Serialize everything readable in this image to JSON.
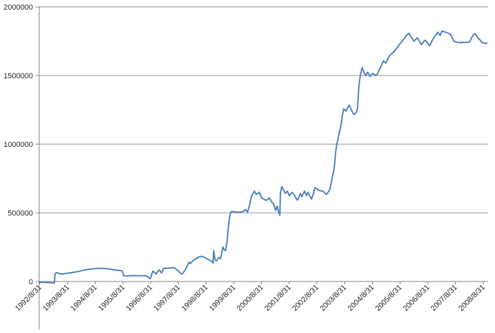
{
  "chart_data": {
    "type": "line",
    "title": "",
    "xlabel": "",
    "ylabel": "",
    "legend": "none",
    "grid": true,
    "ylim": [
      0,
      2000000
    ],
    "xlim": [
      1992.667,
      2008.83
    ],
    "y_ticks": [
      {
        "value": 0,
        "label": "0"
      },
      {
        "value": 500000,
        "label": "500000"
      },
      {
        "value": 1000000,
        "label": "1000000"
      },
      {
        "value": 1500000,
        "label": "1500000"
      },
      {
        "value": 2000000,
        "label": "2000000"
      }
    ],
    "x_tick_labels": [
      "1992/8/31",
      "1993/8/31",
      "1994/8/31",
      "1995/8/31",
      "1996/8/31",
      "1997/8/31",
      "1998/8/31",
      "1999/8/31",
      "2000/8/31",
      "2001/8/31",
      "2002/8/31",
      "2003/8/31",
      "2004/8/31",
      "2005/8/31",
      "2006/8/31",
      "2007/8/31",
      "2008/8/31"
    ],
    "x_tick_values": [
      1992.667,
      1993.667,
      1994.667,
      1995.667,
      1996.667,
      1997.667,
      1998.667,
      1999.667,
      2000.667,
      2001.667,
      2002.667,
      2003.667,
      2004.667,
      2005.667,
      2006.667,
      2007.667,
      2008.667
    ],
    "series": [
      {
        "name": "value-series",
        "color": "#4F81BD",
        "points": [
          [
            1992.64,
            -5000
          ],
          [
            1992.72,
            -5000
          ],
          [
            1992.82,
            -6000
          ],
          [
            1992.89,
            -7000
          ],
          [
            1992.96,
            -8000
          ],
          [
            1993.06,
            -9000
          ],
          [
            1993.14,
            -11000
          ],
          [
            1993.19,
            -10000
          ],
          [
            1993.21,
            52000
          ],
          [
            1993.26,
            66000
          ],
          [
            1993.34,
            60000
          ],
          [
            1993.41,
            56000
          ],
          [
            1993.49,
            55000
          ],
          [
            1993.58,
            58000
          ],
          [
            1993.66,
            60000
          ],
          [
            1993.73,
            62000
          ],
          [
            1993.83,
            65000
          ],
          [
            1993.91,
            68000
          ],
          [
            1993.98,
            70000
          ],
          [
            1994.08,
            74000
          ],
          [
            1994.16,
            78000
          ],
          [
            1994.23,
            82000
          ],
          [
            1994.33,
            85000
          ],
          [
            1994.4,
            88000
          ],
          [
            1994.48,
            90000
          ],
          [
            1994.58,
            92000
          ],
          [
            1994.65,
            94000
          ],
          [
            1994.73,
            95000
          ],
          [
            1994.83,
            96000
          ],
          [
            1994.9,
            96000
          ],
          [
            1994.97,
            95000
          ],
          [
            1995.07,
            93000
          ],
          [
            1995.15,
            91000
          ],
          [
            1995.22,
            89000
          ],
          [
            1995.32,
            86000
          ],
          [
            1995.4,
            84000
          ],
          [
            1995.47,
            82000
          ],
          [
            1995.57,
            80000
          ],
          [
            1995.64,
            76000
          ],
          [
            1995.69,
            42000
          ],
          [
            1995.77,
            42000
          ],
          [
            1995.84,
            41000
          ],
          [
            1995.94,
            42000
          ],
          [
            1996.02,
            42000
          ],
          [
            1996.09,
            43000
          ],
          [
            1996.19,
            42000
          ],
          [
            1996.26,
            42000
          ],
          [
            1996.34,
            42000
          ],
          [
            1996.44,
            42000
          ],
          [
            1996.51,
            41000
          ],
          [
            1996.59,
            30000
          ],
          [
            1996.64,
            20000
          ],
          [
            1996.69,
            40000
          ],
          [
            1996.74,
            75000
          ],
          [
            1996.81,
            65000
          ],
          [
            1996.86,
            55000
          ],
          [
            1996.93,
            75000
          ],
          [
            1996.98,
            84000
          ],
          [
            1997.06,
            62000
          ],
          [
            1997.13,
            95000
          ],
          [
            1997.21,
            96000
          ],
          [
            1997.28,
            97000
          ],
          [
            1997.38,
            99000
          ],
          [
            1997.46,
            101000
          ],
          [
            1997.53,
            98000
          ],
          [
            1997.6,
            88000
          ],
          [
            1997.68,
            75000
          ],
          [
            1997.75,
            57000
          ],
          [
            1997.8,
            54000
          ],
          [
            1997.88,
            75000
          ],
          [
            1997.93,
            91000
          ],
          [
            1997.98,
            110000
          ],
          [
            1998.05,
            141000
          ],
          [
            1998.1,
            130000
          ],
          [
            1998.18,
            150000
          ],
          [
            1998.23,
            158000
          ],
          [
            1998.3,
            165000
          ],
          [
            1998.37,
            175000
          ],
          [
            1998.45,
            180000
          ],
          [
            1998.5,
            184000
          ],
          [
            1998.57,
            180000
          ],
          [
            1998.65,
            172000
          ],
          [
            1998.72,
            163000
          ],
          [
            1998.82,
            153000
          ],
          [
            1998.9,
            140000
          ],
          [
            1998.92,
            134000
          ],
          [
            1998.94,
            225000
          ],
          [
            1998.99,
            160000
          ],
          [
            1999.04,
            150000
          ],
          [
            1999.12,
            175000
          ],
          [
            1999.19,
            167000
          ],
          [
            1999.27,
            250000
          ],
          [
            1999.32,
            230000
          ],
          [
            1999.37,
            225000
          ],
          [
            1999.42,
            283000
          ],
          [
            1999.47,
            400000
          ],
          [
            1999.52,
            480000
          ],
          [
            1999.57,
            508000
          ],
          [
            1999.64,
            510000
          ],
          [
            1999.71,
            507000
          ],
          [
            1999.79,
            506000
          ],
          [
            1999.86,
            505000
          ],
          [
            1999.94,
            507000
          ],
          [
            2000.01,
            510000
          ],
          [
            2000.09,
            525000
          ],
          [
            2000.16,
            505000
          ],
          [
            2000.24,
            560000
          ],
          [
            2000.31,
            625000
          ],
          [
            2000.41,
            658000
          ],
          [
            2000.48,
            634000
          ],
          [
            2000.58,
            650000
          ],
          [
            2000.68,
            609000
          ],
          [
            2000.78,
            595000
          ],
          [
            2000.86,
            592000
          ],
          [
            2000.95,
            608000
          ],
          [
            2001.03,
            580000
          ],
          [
            2001.1,
            567000
          ],
          [
            2001.18,
            517000
          ],
          [
            2001.23,
            550000
          ],
          [
            2001.28,
            510000
          ],
          [
            2001.33,
            484000
          ],
          [
            2001.35,
            650000
          ],
          [
            2001.4,
            691000
          ],
          [
            2001.48,
            660000
          ],
          [
            2001.53,
            642000
          ],
          [
            2001.6,
            658000
          ],
          [
            2001.67,
            625000
          ],
          [
            2001.77,
            650000
          ],
          [
            2001.85,
            630000
          ],
          [
            2001.9,
            610000
          ],
          [
            2001.97,
            592000
          ],
          [
            2002.07,
            641000
          ],
          [
            2002.12,
            617000
          ],
          [
            2002.22,
            658000
          ],
          [
            2002.29,
            625000
          ],
          [
            2002.34,
            650000
          ],
          [
            2002.42,
            620000
          ],
          [
            2002.47,
            600000
          ],
          [
            2002.54,
            640000
          ],
          [
            2002.59,
            683000
          ],
          [
            2002.72,
            667000
          ],
          [
            2002.79,
            660000
          ],
          [
            2002.89,
            658000
          ],
          [
            2002.94,
            645000
          ],
          [
            2003.01,
            634000
          ],
          [
            2003.09,
            655000
          ],
          [
            2003.14,
            675000
          ],
          [
            2003.21,
            750000
          ],
          [
            2003.26,
            790000
          ],
          [
            2003.31,
            860000
          ],
          [
            2003.34,
            940000
          ],
          [
            2003.39,
            1005000
          ],
          [
            2003.44,
            1050000
          ],
          [
            2003.49,
            1100000
          ],
          [
            2003.54,
            1140000
          ],
          [
            2003.58,
            1200000
          ],
          [
            2003.63,
            1258000
          ],
          [
            2003.71,
            1241000
          ],
          [
            2003.76,
            1260000
          ],
          [
            2003.83,
            1285000
          ],
          [
            2003.91,
            1250000
          ],
          [
            2003.96,
            1230000
          ],
          [
            2004.01,
            1215000
          ],
          [
            2004.08,
            1230000
          ],
          [
            2004.13,
            1260000
          ],
          [
            2004.18,
            1420000
          ],
          [
            2004.23,
            1500000
          ],
          [
            2004.3,
            1558000
          ],
          [
            2004.35,
            1530000
          ],
          [
            2004.43,
            1500000
          ],
          [
            2004.5,
            1525000
          ],
          [
            2004.58,
            1492000
          ],
          [
            2004.65,
            1510000
          ],
          [
            2004.7,
            1515000
          ],
          [
            2004.78,
            1500000
          ],
          [
            2004.83,
            1505000
          ],
          [
            2004.9,
            1535000
          ],
          [
            2005.0,
            1575000
          ],
          [
            2005.07,
            1608000
          ],
          [
            2005.15,
            1590000
          ],
          [
            2005.25,
            1633000
          ],
          [
            2005.32,
            1650000
          ],
          [
            2005.4,
            1665000
          ],
          [
            2005.47,
            1680000
          ],
          [
            2005.55,
            1700000
          ],
          [
            2005.64,
            1725000
          ],
          [
            2005.74,
            1750000
          ],
          [
            2005.82,
            1770000
          ],
          [
            2005.89,
            1790000
          ],
          [
            2005.99,
            1808000
          ],
          [
            2006.07,
            1780000
          ],
          [
            2006.17,
            1750000
          ],
          [
            2006.24,
            1765000
          ],
          [
            2006.29,
            1775000
          ],
          [
            2006.36,
            1750000
          ],
          [
            2006.44,
            1725000
          ],
          [
            2006.51,
            1745000
          ],
          [
            2006.56,
            1758000
          ],
          [
            2006.64,
            1742000
          ],
          [
            2006.74,
            1717000
          ],
          [
            2006.81,
            1750000
          ],
          [
            2006.91,
            1783000
          ],
          [
            2006.98,
            1800000
          ],
          [
            2007.03,
            1816000
          ],
          [
            2007.11,
            1792000
          ],
          [
            2007.18,
            1825000
          ],
          [
            2007.23,
            1820000
          ],
          [
            2007.31,
            1816000
          ],
          [
            2007.38,
            1810000
          ],
          [
            2007.48,
            1800000
          ],
          [
            2007.56,
            1770000
          ],
          [
            2007.61,
            1750000
          ],
          [
            2007.68,
            1745000
          ],
          [
            2007.75,
            1742000
          ],
          [
            2007.85,
            1740000
          ],
          [
            2007.93,
            1742000
          ],
          [
            2008.0,
            1741000
          ],
          [
            2008.1,
            1741000
          ],
          [
            2008.18,
            1745000
          ],
          [
            2008.25,
            1775000
          ],
          [
            2008.35,
            1805000
          ],
          [
            2008.4,
            1800000
          ],
          [
            2008.47,
            1775000
          ],
          [
            2008.55,
            1760000
          ],
          [
            2008.62,
            1742000
          ],
          [
            2008.7,
            1735000
          ],
          [
            2008.75,
            1733000
          ],
          [
            2008.8,
            1737000
          ]
        ]
      }
    ]
  },
  "style": {
    "background": "#ffffff",
    "line_color": "#4F81BD",
    "grid_color": "#919191",
    "axis_color": "#7F7F7F",
    "text_color": "#262626"
  }
}
